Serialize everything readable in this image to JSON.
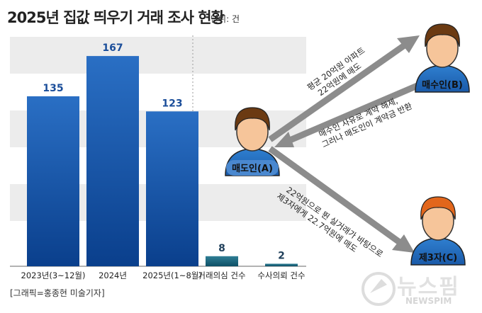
{
  "header": {
    "title": "2025년 집값 띄우기 거래 조사 현황",
    "unit": "단위: 건"
  },
  "credit": "[그래픽=홍종현 미술기자]",
  "colors": {
    "bar_blue_top": "#2a6fc4",
    "bar_blue_bottom": "#0a3f8c",
    "bar_teal_top": "#2f7f95",
    "bar_teal_bottom": "#0d4f66",
    "value_label": "#1b4e9a",
    "band": "#ececec",
    "arrow": "#8c8c8c",
    "person_face": "#f6c59a",
    "person_hair_brown": "#6b3a12",
    "person_hair_orange": "#e2661b",
    "person_body": "#2f7fd0",
    "name_label_bg": "#4a88cf"
  },
  "chart_data": {
    "type": "bar",
    "categories": [
      "2023년(3~12월)",
      "2024년",
      "2025년(1~8월)",
      "거래의심 건수",
      "수사의뢰 건수"
    ],
    "values": [
      135,
      167,
      123,
      8,
      2
    ],
    "ylim": [
      0,
      180
    ],
    "grid": false,
    "title": "2025년 집값 띄우기 거래 조사 현황",
    "xlabel": "",
    "ylabel": ""
  },
  "diagram": {
    "seller": {
      "label": "매도인(A)",
      "icon": "person-icon"
    },
    "buyer": {
      "label": "매수인(B)",
      "icon": "person-icon"
    },
    "third": {
      "label": "제3자(C)",
      "icon": "person-icon"
    },
    "arrow_sale": [
      "평균 20억원 아파트",
      "22억원에 매도"
    ],
    "arrow_cancel": [
      "매수인 사유로 계약 해제,",
      "그러나 매도인이 계약금 반환"
    ],
    "arrow_resale": [
      "22억원으로 뛴 실거래가 바탕으로",
      "제3자에게 22.7억원에 매도"
    ]
  },
  "watermark": {
    "text_big": "뉴스핌",
    "text_small": "NEWSPIM"
  }
}
